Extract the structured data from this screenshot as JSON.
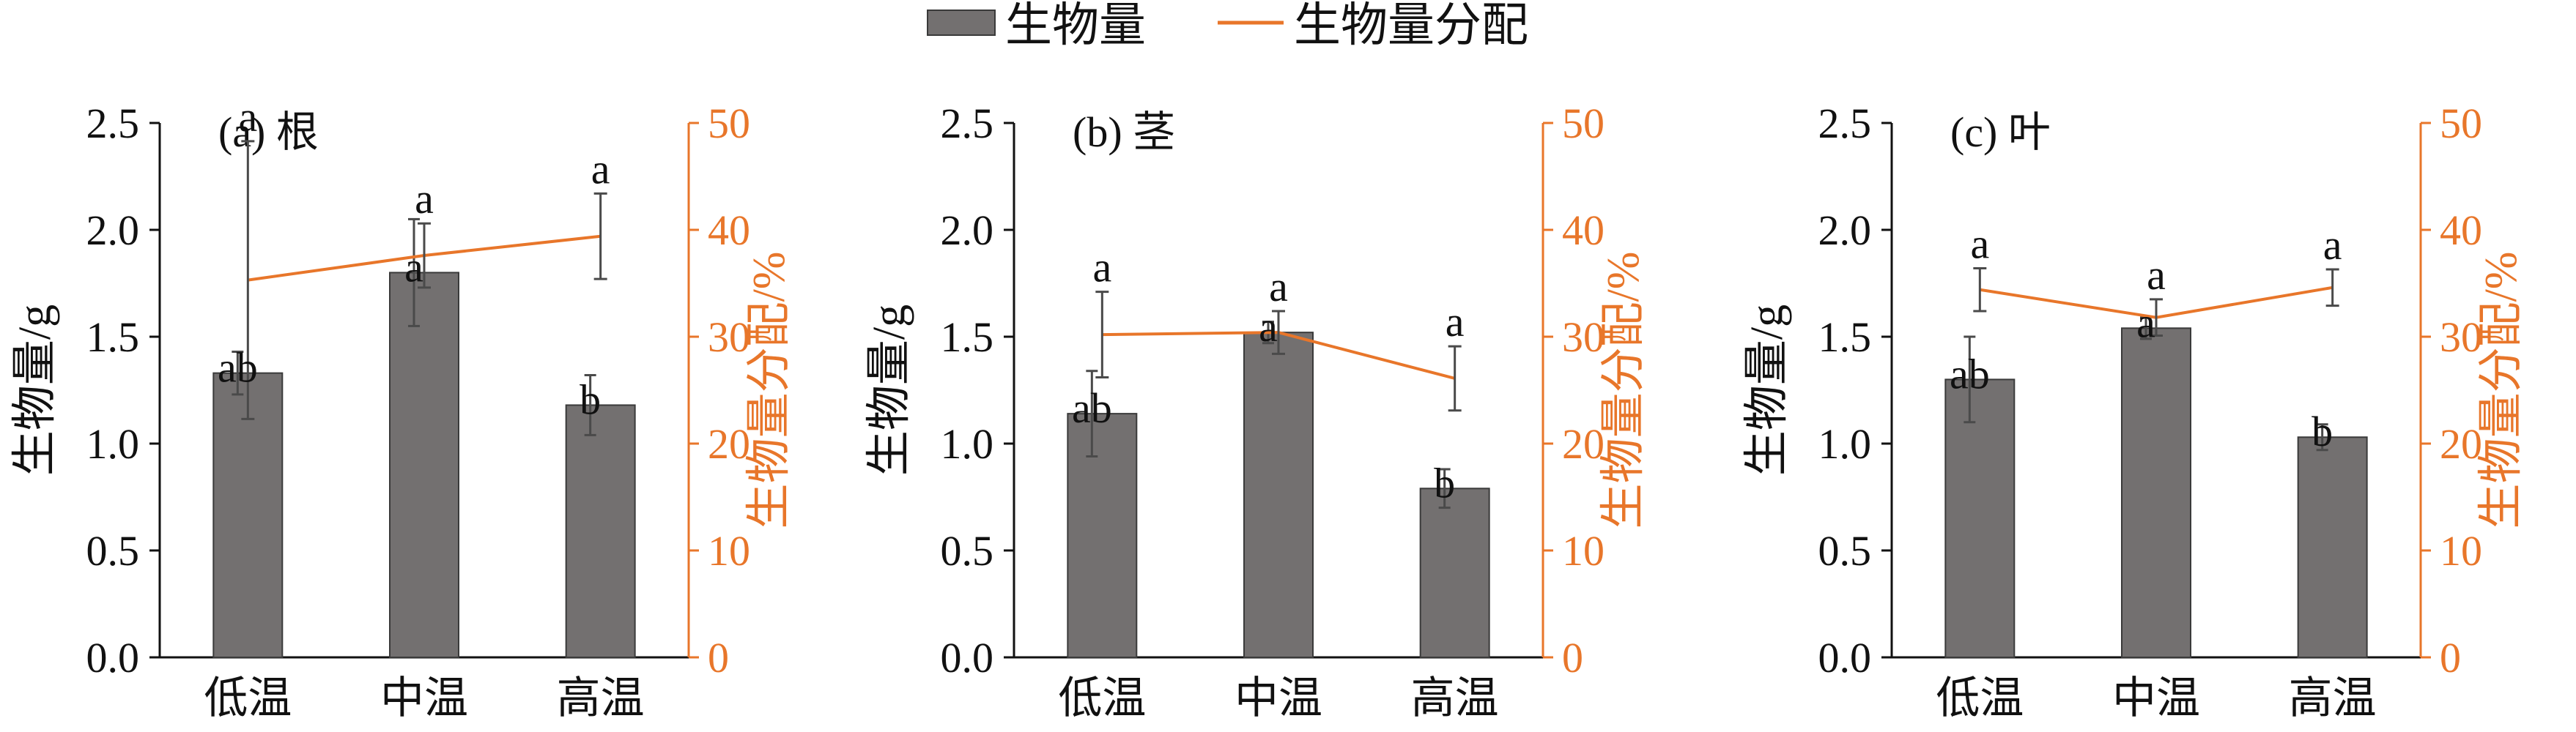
{
  "legend": {
    "bar_label": "生物量",
    "line_label": "生物量分配"
  },
  "colors": {
    "bar": "#737070",
    "bar_edge": "#3a3a3a",
    "line": "#e8762a",
    "error": "#4a4a4a",
    "axis": "#111111"
  },
  "chart_data": [
    {
      "type": "bar",
      "title": "(a) 根",
      "categories": [
        "低温",
        "中温",
        "高温"
      ],
      "ylabel": "生物量/g",
      "y2label": "生物量分配/%",
      "ylim": [
        0,
        2.5
      ],
      "y2lim": [
        0,
        50
      ],
      "yticks": [
        "0.0",
        "0.5",
        "1.0",
        "1.5",
        "2.0",
        "2.5"
      ],
      "y2ticks": [
        "0",
        "10",
        "20",
        "30",
        "40",
        "50"
      ],
      "series": [
        {
          "name": "生物量",
          "axis": "left",
          "values": [
            1.33,
            1.8,
            1.18
          ],
          "error": [
            0.1,
            0.25,
            0.14
          ],
          "labels": [
            "ab",
            "a",
            "b"
          ]
        },
        {
          "name": "生物量分配",
          "axis": "right",
          "values": [
            35.3,
            37.6,
            39.4
          ],
          "error": [
            13,
            3,
            4
          ],
          "labels": [
            "a",
            "a",
            "a"
          ]
        }
      ]
    },
    {
      "type": "bar",
      "title": "(b) 茎",
      "categories": [
        "低温",
        "中温",
        "高温"
      ],
      "ylabel": "生物量/g",
      "y2label": "生物量分配/%",
      "ylim": [
        0,
        2.5
      ],
      "y2lim": [
        0,
        50
      ],
      "yticks": [
        "0.0",
        "0.5",
        "1.0",
        "1.5",
        "2.0",
        "2.5"
      ],
      "y2ticks": [
        "0",
        "10",
        "20",
        "30",
        "40",
        "50"
      ],
      "series": [
        {
          "name": "生物量",
          "axis": "left",
          "values": [
            1.14,
            1.52,
            0.79
          ],
          "error": [
            0.2,
            0.05,
            0.09
          ],
          "labels": [
            "ab",
            "a",
            "b"
          ]
        },
        {
          "name": "生物量分配",
          "axis": "right",
          "values": [
            30.2,
            30.4,
            26.1
          ],
          "error": [
            4,
            2,
            3
          ],
          "labels": [
            "a",
            "a",
            "a"
          ]
        }
      ]
    },
    {
      "type": "bar",
      "title": "(c) 叶",
      "categories": [
        "低温",
        "中温",
        "高温"
      ],
      "ylabel": "生物量/g",
      "y2label": "生物量分配/%",
      "ylim": [
        0,
        2.5
      ],
      "y2lim": [
        0,
        50
      ],
      "yticks": [
        "0.0",
        "0.5",
        "1.0",
        "1.5",
        "2.0",
        "2.5"
      ],
      "y2ticks": [
        "0",
        "10",
        "20",
        "30",
        "40",
        "50"
      ],
      "series": [
        {
          "name": "生物量",
          "axis": "left",
          "values": [
            1.3,
            1.54,
            1.03
          ],
          "error": [
            0.2,
            0.05,
            0.06
          ],
          "labels": [
            "ab",
            "a",
            "b"
          ]
        },
        {
          "name": "生物量分配",
          "axis": "right",
          "values": [
            34.4,
            31.8,
            34.6
          ],
          "error": [
            2,
            1.7,
            1.7
          ],
          "labels": [
            "a",
            "a",
            "a"
          ]
        }
      ]
    }
  ]
}
